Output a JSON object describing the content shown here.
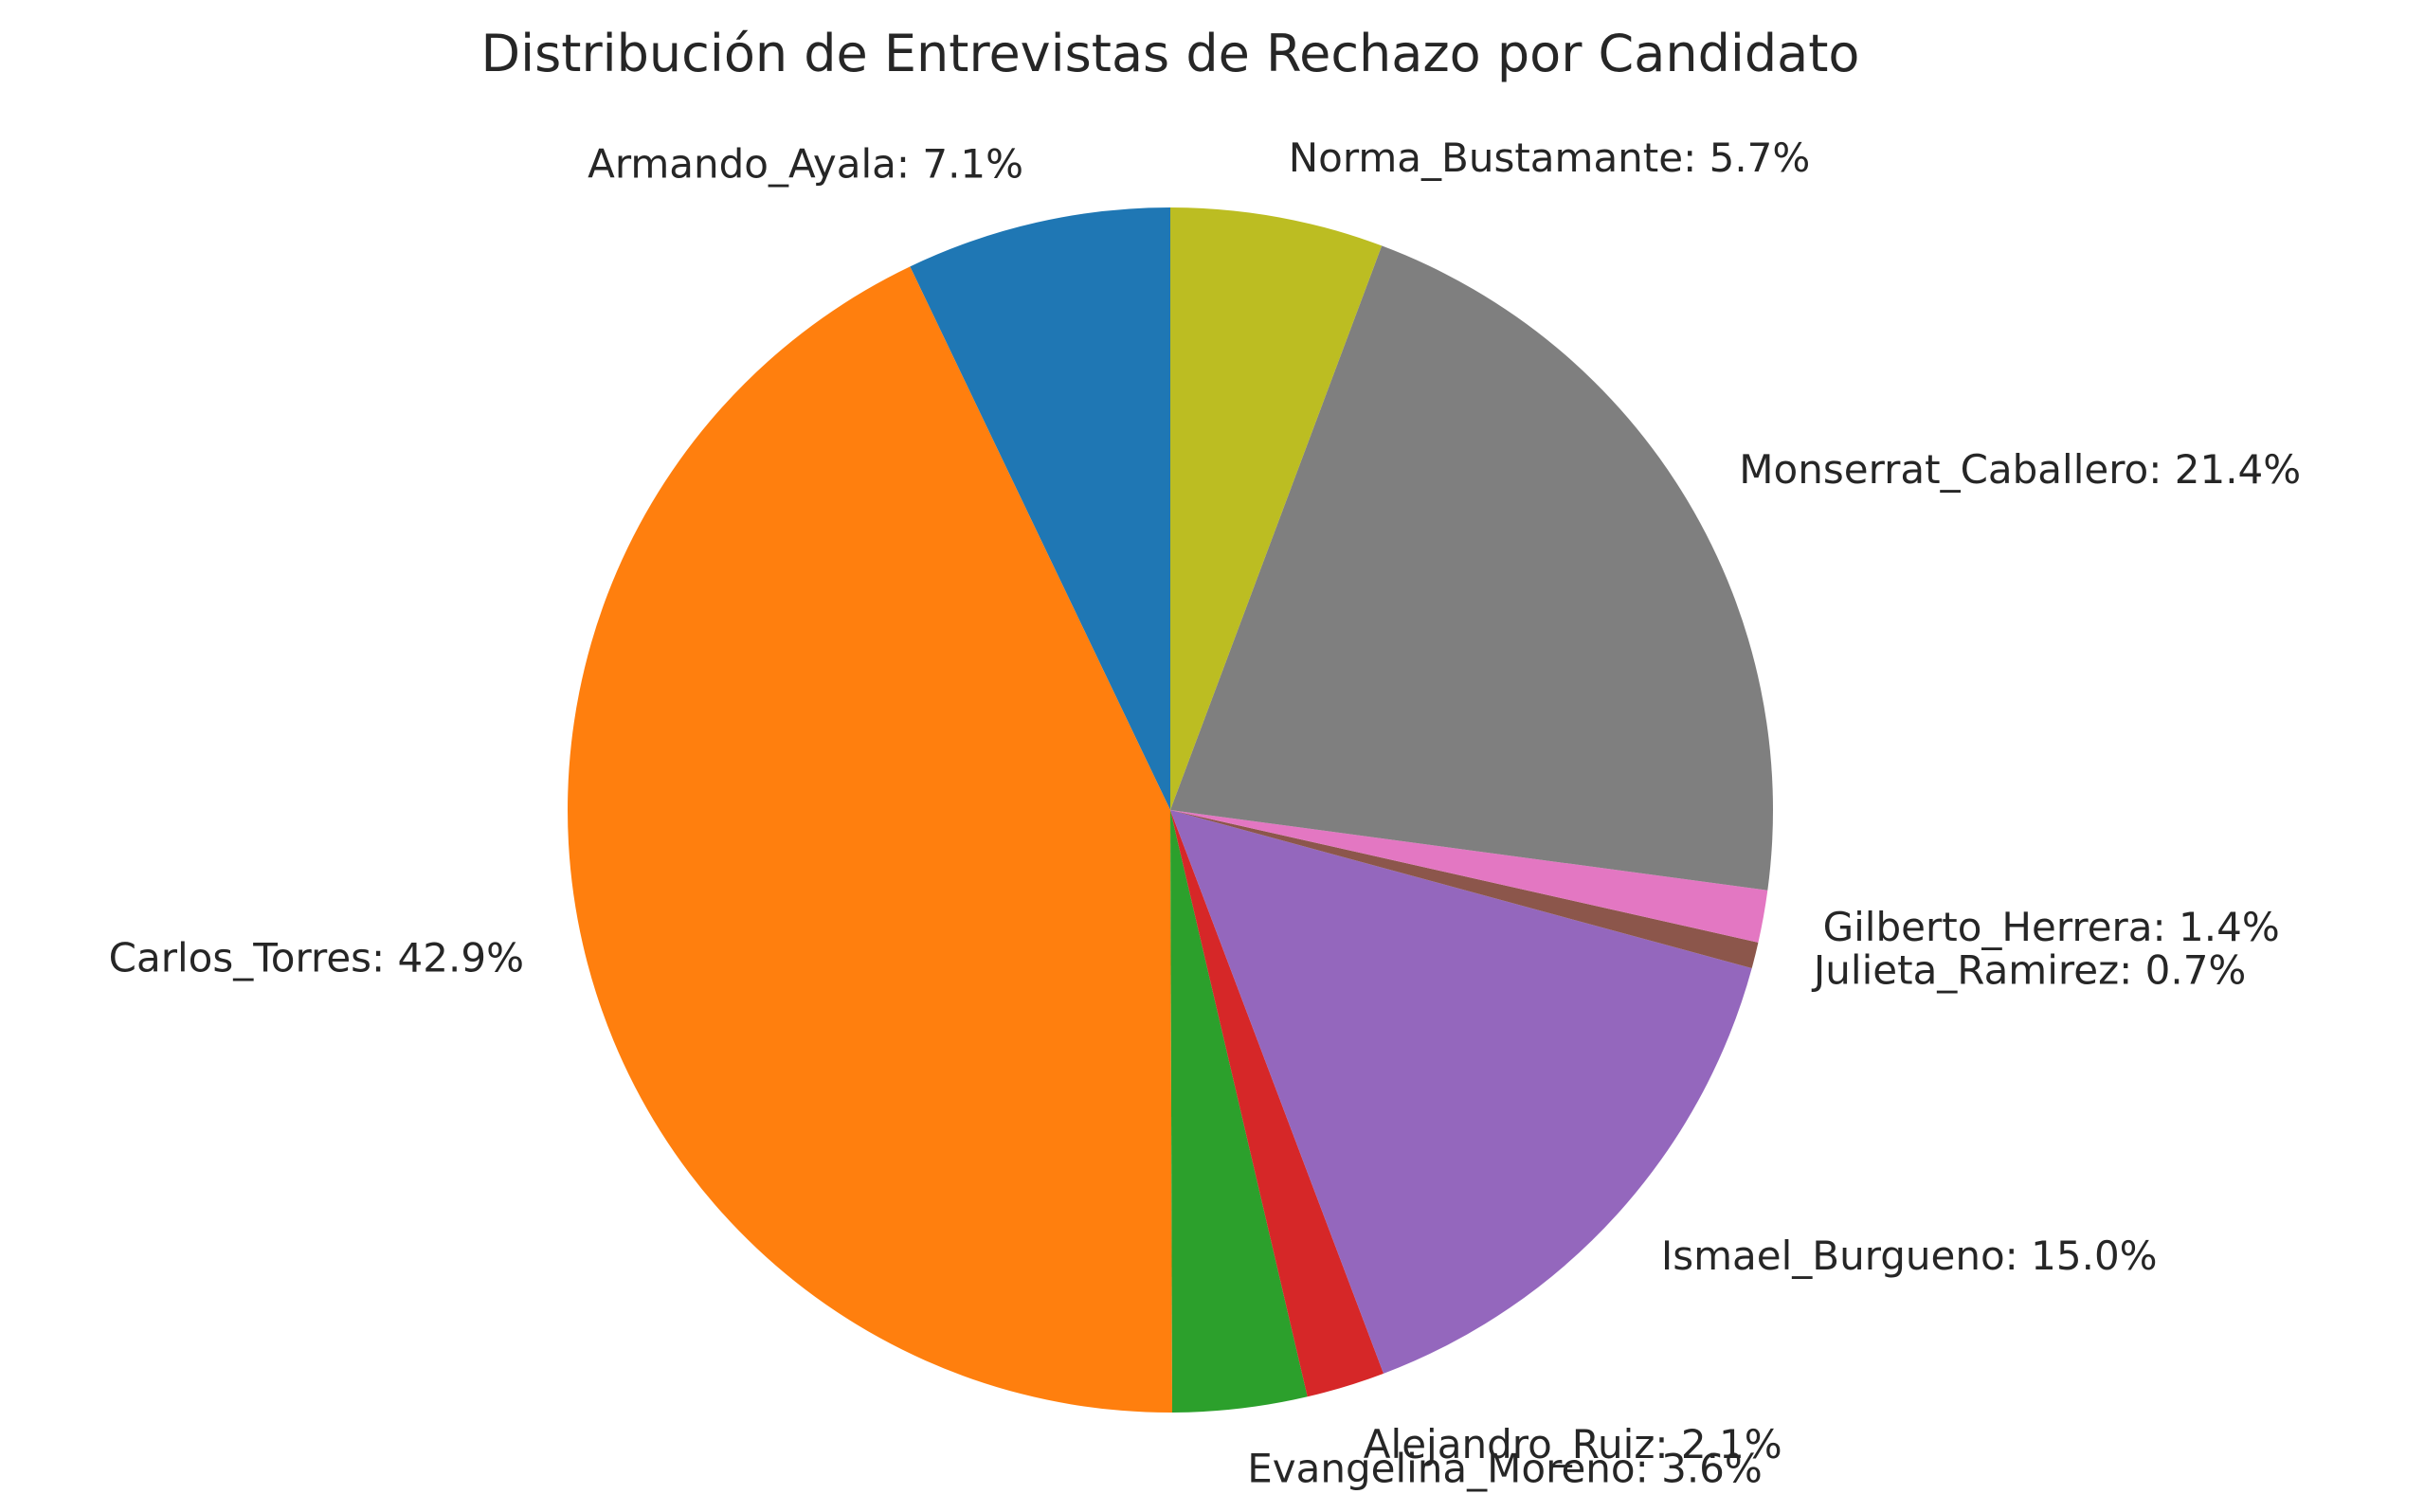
{
  "chart_data": {
    "type": "pie",
    "title": "Distribución de Entrevistas de Rechazo por Candidato",
    "start_angle_deg": 90,
    "direction": "counterclockwise",
    "slices": [
      {
        "label": "Armando_Ayala",
        "percent": 7.1,
        "display": "Armando_Ayala: 7.1%",
        "color": "#1f77b4"
      },
      {
        "label": "Carlos_Torres",
        "percent": 42.9,
        "display": "Carlos_Torres: 42.9%",
        "color": "#ff7f0e"
      },
      {
        "label": "Evangelina_Moreno",
        "percent": 3.6,
        "display": "Evangelina_Moreno: 3.6%",
        "color": "#2ca02c"
      },
      {
        "label": "Alejandro_Ruiz",
        "percent": 2.1,
        "display": "Alejandro_Ruiz: 2.1%",
        "color": "#d62728"
      },
      {
        "label": "Ismael_Burgueno",
        "percent": 15.0,
        "display": "Ismael_Burgueno: 15.0%",
        "color": "#9467bd"
      },
      {
        "label": "Julieta_Ramirez",
        "percent": 0.7,
        "display": "Julieta_Ramirez: 0.7%",
        "color": "#8c564b"
      },
      {
        "label": "Gilberto_Herrera",
        "percent": 1.4,
        "display": "Gilberto_Herrera: 1.4%",
        "color": "#e377c2"
      },
      {
        "label": "Monserrat_Caballero",
        "percent": 21.4,
        "display": "Monserrat_Caballero: 21.4%",
        "color": "#7f7f7f"
      },
      {
        "label": "Norma_Bustamante",
        "percent": 5.7,
        "display": "Norma_Bustamante: 5.7%",
        "color": "#bcbd22"
      }
    ]
  }
}
